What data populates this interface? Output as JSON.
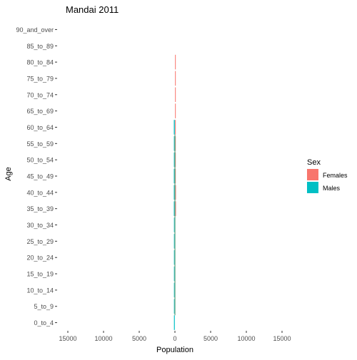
{
  "chart_data": {
    "type": "bar",
    "orientation": "horizontal",
    "layout": "population-pyramid",
    "title": "Mandai  2011",
    "xlabel": "Population",
    "ylabel": "Age",
    "xlim": [
      -16500,
      16500
    ],
    "x_ticks": [
      -15000,
      -10000,
      -5000,
      0,
      5000,
      10000,
      15000
    ],
    "x_tick_labels": [
      "15000",
      "10000",
      "5000",
      "0",
      "5000",
      "10000",
      "15000"
    ],
    "categories": [
      "0_to_4",
      "5_to_9",
      "10_to_14",
      "15_to_19",
      "20_to_24",
      "25_to_29",
      "30_to_34",
      "35_to_39",
      "40_to_44",
      "45_to_49",
      "50_to_54",
      "55_to_59",
      "60_to_64",
      "65_to_69",
      "70_to_74",
      "75_to_79",
      "80_to_84",
      "85_to_89",
      "90_and_over"
    ],
    "series": [
      {
        "name": "Females",
        "values": [
          0,
          0,
          0,
          0,
          0,
          0,
          0,
          150,
          150,
          50,
          30,
          20,
          40,
          20,
          20,
          20,
          20,
          0,
          0
        ]
      },
      {
        "name": "Males",
        "values": [
          -140,
          -140,
          -140,
          -140,
          -140,
          -140,
          -140,
          -160,
          -160,
          -160,
          -150,
          -150,
          -160,
          0,
          0,
          0,
          0,
          0,
          0
        ]
      }
    ],
    "colors": {
      "Females": "#F8766D",
      "Males": "#00BFC4",
      "overlap": "#5E9E7C"
    },
    "legend": {
      "title": "Sex",
      "placement": "right"
    },
    "grid": false
  }
}
